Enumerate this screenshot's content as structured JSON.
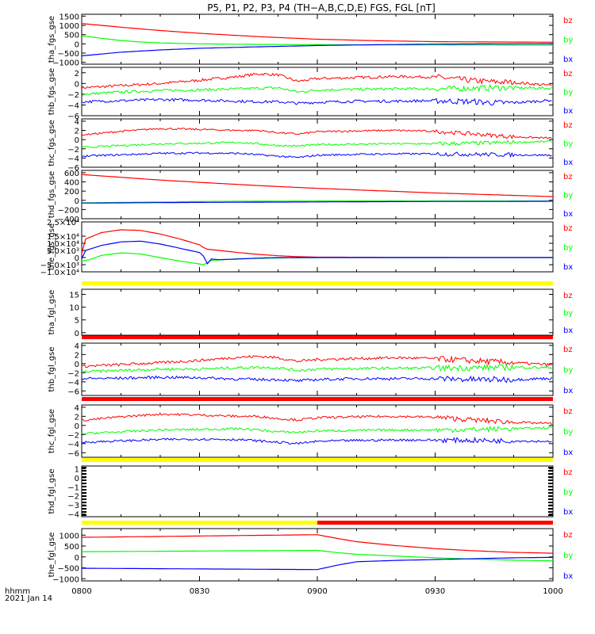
{
  "title": "P5, P1, P2, P3, P4 (TH−A,B,C,D,E) FGS, FGL [nT]",
  "time_axis": {
    "label": "hhmm",
    "date": "2021 Jan 14",
    "ticks": [
      "0800",
      "0830",
      "0900",
      "0930",
      "1000"
    ],
    "range_minutes": [
      0,
      120
    ]
  },
  "colors": {
    "bz": "#ff0000",
    "by": "#00ff00",
    "bx": "#0000ff",
    "bar_yellow": "#ffff00",
    "bar_red": "#ff0000"
  },
  "chart_data": [
    {
      "type": "line",
      "ylabel": "tha_fgs_gse",
      "yticks": [
        "1500",
        "1000",
        "500",
        "0",
        "−500",
        "−1000"
      ],
      "ytick_values": [
        1500,
        1000,
        500,
        0,
        -500,
        -1000
      ],
      "ylim": [
        -1100,
        1600
      ],
      "legend": [
        "bz",
        "by",
        "bx"
      ],
      "series": [
        {
          "name": "bz",
          "x": [
            0,
            10,
            20,
            30,
            45,
            60,
            75,
            90,
            105,
            120
          ],
          "y": [
            1100,
            900,
            720,
            570,
            390,
            250,
            170,
            120,
            100,
            90
          ]
        },
        {
          "name": "by",
          "x": [
            0,
            5,
            10,
            15,
            20,
            30,
            45,
            60,
            75,
            90,
            105,
            120
          ],
          "y": [
            440,
            300,
            180,
            100,
            50,
            0,
            -30,
            -45,
            -55,
            -60,
            -65,
            -70
          ]
        },
        {
          "name": "bx",
          "x": [
            0,
            10,
            20,
            30,
            45,
            60,
            75,
            90,
            105,
            120
          ],
          "y": [
            -650,
            -450,
            -330,
            -240,
            -160,
            -90,
            -45,
            -15,
            0,
            10
          ]
        }
      ]
    },
    {
      "type": "line",
      "ylabel": "thb_fgs_gse",
      "yticks": [
        "2",
        "0",
        "−2",
        "−4",
        "−6"
      ],
      "ytick_values": [
        2,
        0,
        -2,
        -4,
        -6
      ],
      "ylim": [
        -6,
        3
      ],
      "legend": [
        "bz",
        "by",
        "bx"
      ],
      "noise": 0.25,
      "series": [
        {
          "name": "bz",
          "x": [
            0,
            10,
            20,
            30,
            40,
            45,
            50,
            55,
            60,
            70,
            80,
            90,
            100,
            105,
            110,
            120
          ],
          "y": [
            -0.8,
            -0.4,
            0.0,
            0.6,
            1.3,
            1.8,
            1.6,
            0.4,
            0.9,
            1.1,
            1.3,
            1.2,
            0.5,
            0.3,
            0.2,
            -0.4
          ]
        },
        {
          "name": "by",
          "x": [
            0,
            10,
            20,
            30,
            40,
            45,
            50,
            55,
            60,
            70,
            80,
            90,
            100,
            105,
            110,
            120
          ],
          "y": [
            -2.0,
            -1.6,
            -1.3,
            -1.2,
            -1.0,
            -0.9,
            -0.8,
            -1.6,
            -1.2,
            -1.1,
            -1.0,
            -1.0,
            -0.9,
            -0.8,
            -0.8,
            -0.9
          ]
        },
        {
          "name": "bx",
          "x": [
            0,
            10,
            20,
            30,
            40,
            45,
            50,
            55,
            60,
            70,
            80,
            90,
            100,
            105,
            110,
            120
          ],
          "y": [
            -3.4,
            -3.2,
            -3.0,
            -3.1,
            -3.3,
            -3.4,
            -3.4,
            -3.7,
            -3.5,
            -3.3,
            -3.3,
            -3.2,
            -3.4,
            -3.6,
            -3.6,
            -3.1
          ]
        }
      ]
    },
    {
      "type": "line",
      "ylabel": "thc_fgs_gse",
      "yticks": [
        "4",
        "2",
        "0",
        "−2",
        "−4",
        "−6"
      ],
      "ytick_values": [
        4,
        2,
        0,
        -2,
        -4,
        -6
      ],
      "ylim": [
        -6,
        4.5
      ],
      "legend": [
        "bz",
        "by",
        "bx"
      ],
      "noise": 0.2,
      "series": [
        {
          "name": "bz",
          "x": [
            0,
            10,
            20,
            30,
            40,
            45,
            50,
            55,
            60,
            70,
            80,
            90,
            100,
            110,
            120
          ],
          "y": [
            1.0,
            1.8,
            2.4,
            2.2,
            2.0,
            2.0,
            1.5,
            1.2,
            1.7,
            1.9,
            2.0,
            1.8,
            1.2,
            0.6,
            0.3
          ]
        },
        {
          "name": "by",
          "x": [
            0,
            10,
            20,
            30,
            40,
            45,
            50,
            55,
            60,
            70,
            80,
            90,
            100,
            110,
            120
          ],
          "y": [
            -1.7,
            -1.3,
            -0.9,
            -0.8,
            -0.6,
            -0.9,
            -1.3,
            -1.4,
            -1.1,
            -1.0,
            -0.9,
            -0.9,
            -0.8,
            -0.6,
            -0.4
          ]
        },
        {
          "name": "bx",
          "x": [
            0,
            10,
            20,
            30,
            40,
            45,
            50,
            55,
            60,
            70,
            80,
            90,
            100,
            110,
            120
          ],
          "y": [
            -3.6,
            -3.3,
            -3.0,
            -2.9,
            -3.0,
            -3.3,
            -3.6,
            -3.9,
            -3.4,
            -3.2,
            -3.1,
            -3.1,
            -3.2,
            -3.3,
            -3.4
          ]
        }
      ]
    },
    {
      "type": "line",
      "ylabel": "thd_fgs_gse",
      "yticks": [
        "600",
        "400",
        "200",
        "0",
        "−200",
        "−400"
      ],
      "ytick_values": [
        600,
        400,
        200,
        0,
        -200,
        -400
      ],
      "ylim": [
        -400,
        650
      ],
      "legend": [
        "bz",
        "by",
        "bx"
      ],
      "series": [
        {
          "name": "bz",
          "x": [
            0,
            10,
            20,
            30,
            45,
            60,
            75,
            90,
            105,
            120
          ],
          "y": [
            560,
            500,
            440,
            390,
            320,
            260,
            210,
            160,
            120,
            80
          ]
        },
        {
          "name": "by",
          "x": [
            0,
            10,
            20,
            22,
            22.5,
            23,
            30,
            45,
            60,
            75,
            90,
            105,
            120
          ],
          "y": [
            -55,
            -45,
            -35,
            -35,
            30,
            -35,
            -25,
            -20,
            -15,
            -15,
            -15,
            -15,
            -15
          ]
        },
        {
          "name": "bx",
          "x": [
            0,
            10,
            20,
            30,
            45,
            60,
            75,
            90,
            105,
            120
          ],
          "y": [
            -60,
            -55,
            -50,
            -45,
            -40,
            -35,
            -30,
            -25,
            -25,
            -20
          ]
        }
      ]
    },
    {
      "type": "line",
      "ylabel": "the_fgs_gse",
      "yticks": [
        "2.5×10⁴",
        "1.5×10⁴",
        "1.0×10⁴",
        "5.0×10³",
        "0",
        "−5.0×10³",
        "−1.0×10⁴"
      ],
      "ytick_values": [
        25000,
        15000,
        10000,
        5000,
        0,
        -5000,
        -10000
      ],
      "ylim": [
        -10000,
        25000
      ],
      "legend": [
        "bz",
        "by",
        "bx"
      ],
      "series": [
        {
          "name": "bz",
          "x": [
            0,
            1,
            5,
            10,
            15,
            20,
            25,
            30,
            31,
            31.5,
            35,
            40,
            45,
            50,
            55,
            60,
            75,
            90,
            105,
            120
          ],
          "y": [
            3000,
            13000,
            17500,
            19500,
            19000,
            16500,
            13000,
            9000,
            7000,
            6000,
            5000,
            3500,
            2200,
            1300,
            600,
            300,
            200,
            150,
            100,
            100
          ]
        },
        {
          "name": "by",
          "x": [
            0,
            2,
            5,
            10,
            15,
            20,
            25,
            30,
            31,
            31.2,
            31.8,
            33,
            40,
            50,
            60,
            75,
            90,
            105,
            120
          ],
          "y": [
            -2500,
            -1500,
            1500,
            3300,
            2500,
            0,
            -2500,
            -4500,
            -5000,
            -9500,
            -4000,
            -2000,
            -800,
            -300,
            0,
            0,
            0,
            0,
            0
          ]
        },
        {
          "name": "bx",
          "x": [
            0,
            1,
            5,
            10,
            15,
            20,
            25,
            30,
            31,
            31.5,
            33,
            35,
            40,
            45,
            50,
            55,
            60,
            75,
            90,
            105,
            120
          ],
          "y": [
            -800,
            5000,
            8500,
            11000,
            11500,
            9500,
            6500,
            3500,
            1000,
            -6000,
            -1000,
            -1500,
            -1000,
            -400,
            0,
            0,
            0,
            0,
            0,
            0,
            0
          ]
        }
      ]
    },
    {
      "type": "line",
      "ylabel": "tha_fgl_gse",
      "yticks": [
        "15",
        "10",
        "5",
        "0"
      ],
      "ytick_values": [
        15,
        10,
        5,
        0
      ],
      "ylim": [
        -1,
        17
      ],
      "legend": [
        "bz",
        "by",
        "bx"
      ],
      "series": []
    },
    {
      "type": "line",
      "ylabel": "thb_fgl_gse",
      "yticks": [
        "4",
        "2",
        "0",
        "−2",
        "−4",
        "−6"
      ],
      "ytick_values": [
        4,
        2,
        0,
        -2,
        -4,
        -6
      ],
      "ylim": [
        -7,
        4.5
      ],
      "legend": [
        "bz",
        "by",
        "bx"
      ],
      "noise": 0.3,
      "series": [
        {
          "name": "bz",
          "x": [
            0,
            10,
            20,
            30,
            40,
            45,
            50,
            55,
            60,
            70,
            80,
            90,
            100,
            110,
            120
          ],
          "y": [
            -0.6,
            -0.2,
            0.2,
            0.7,
            1.4,
            1.6,
            1.3,
            0.5,
            0.9,
            1.1,
            1.3,
            1.1,
            0.6,
            0.2,
            -0.3
          ]
        },
        {
          "name": "by",
          "x": [
            0,
            10,
            20,
            30,
            40,
            45,
            50,
            55,
            60,
            70,
            80,
            90,
            100,
            110,
            120
          ],
          "y": [
            -1.8,
            -1.5,
            -1.2,
            -1.2,
            -0.9,
            -0.8,
            -0.9,
            -1.5,
            -1.2,
            -1.1,
            -1.0,
            -1.0,
            -0.9,
            -0.8,
            -0.9
          ]
        },
        {
          "name": "bx",
          "x": [
            0,
            10,
            20,
            30,
            40,
            45,
            50,
            55,
            60,
            70,
            80,
            90,
            100,
            110,
            120
          ],
          "y": [
            -3.3,
            -3.2,
            -3.0,
            -3.1,
            -3.4,
            -3.5,
            -3.5,
            -3.8,
            -3.5,
            -3.3,
            -3.3,
            -3.3,
            -3.5,
            -3.5,
            -3.2
          ]
        }
      ]
    },
    {
      "type": "line",
      "ylabel": "thc_fgl_gse",
      "yticks": [
        "4",
        "2",
        "0",
        "−2",
        "−4",
        "−6"
      ],
      "ytick_values": [
        4,
        2,
        0,
        -2,
        -4,
        -6
      ],
      "ylim": [
        -7,
        4.5
      ],
      "legend": [
        "bz",
        "by",
        "bx"
      ],
      "noise": 0.25,
      "series": [
        {
          "name": "bz",
          "x": [
            0,
            10,
            20,
            30,
            40,
            45,
            50,
            55,
            60,
            70,
            80,
            90,
            100,
            110,
            120
          ],
          "y": [
            1.1,
            1.9,
            2.5,
            2.3,
            2.0,
            2.0,
            1.5,
            1.2,
            1.7,
            1.9,
            2.0,
            1.8,
            1.2,
            0.7,
            0.4
          ]
        },
        {
          "name": "by",
          "x": [
            0,
            10,
            20,
            30,
            40,
            45,
            50,
            55,
            60,
            70,
            80,
            90,
            100,
            110,
            120
          ],
          "y": [
            -1.8,
            -1.4,
            -1.0,
            -0.9,
            -0.7,
            -1.0,
            -1.4,
            -1.5,
            -1.2,
            -1.1,
            -1.0,
            -1.0,
            -0.9,
            -0.7,
            -0.5
          ]
        },
        {
          "name": "bx",
          "x": [
            0,
            10,
            20,
            30,
            40,
            45,
            50,
            55,
            60,
            70,
            80,
            90,
            100,
            110,
            120
          ],
          "y": [
            -3.7,
            -3.4,
            -3.1,
            -3.0,
            -3.1,
            -3.4,
            -3.7,
            -4.0,
            -3.5,
            -3.3,
            -3.2,
            -3.2,
            -3.3,
            -3.4,
            -3.5
          ]
        }
      ]
    },
    {
      "type": "line",
      "ylabel": "thd_fgl_gse",
      "yticks": [
        "1",
        "0",
        "−1",
        "−2",
        "−3",
        "−4"
      ],
      "ytick_values": [
        1,
        0,
        -1,
        -2,
        -3,
        -4
      ],
      "ylim": [
        -4.3,
        1.3
      ],
      "legend": [
        "bz",
        "by",
        "bx"
      ],
      "series": []
    },
    {
      "type": "line",
      "ylabel": "the_fgl_gse",
      "yticks": [
        "1000",
        "500",
        "0",
        "−500",
        "−1000"
      ],
      "ytick_values": [
        1000,
        500,
        0,
        -500,
        -1000
      ],
      "ylim": [
        -1100,
        1300
      ],
      "legend": [
        "bz",
        "by",
        "bx"
      ],
      "series": [
        {
          "name": "bz",
          "x": [
            0,
            10,
            20,
            30,
            40,
            50,
            60,
            65,
            70,
            80,
            90,
            100,
            110,
            120
          ],
          "y": [
            900,
            920,
            940,
            960,
            980,
            1000,
            1020,
            850,
            700,
            520,
            380,
            280,
            210,
            170
          ]
        },
        {
          "name": "by",
          "x": [
            0,
            10,
            20,
            30,
            40,
            50,
            60,
            65,
            70,
            80,
            90,
            100,
            110,
            120
          ],
          "y": [
            240,
            250,
            260,
            270,
            280,
            290,
            300,
            200,
            120,
            40,
            -40,
            -100,
            -150,
            -180
          ]
        },
        {
          "name": "bx",
          "x": [
            0,
            10,
            20,
            30,
            40,
            50,
            60,
            65,
            70,
            75,
            80,
            90,
            100,
            110,
            120
          ],
          "y": [
            -520,
            -530,
            -540,
            -550,
            -560,
            -570,
            -580,
            -380,
            -220,
            -190,
            -160,
            -120,
            -80,
            -40,
            -20
          ]
        }
      ]
    }
  ]
}
